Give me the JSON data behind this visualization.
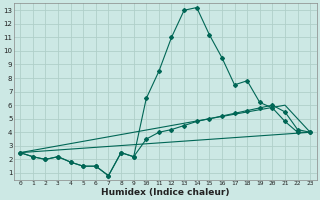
{
  "xlabel": "Humidex (Indice chaleur)",
  "xlim": [
    -0.5,
    23.5
  ],
  "ylim": [
    0.5,
    13.5
  ],
  "xtick_labels": [
    "0",
    "1",
    "2",
    "3",
    "4",
    "5",
    "6",
    "7",
    "8",
    "9",
    "10",
    "11",
    "12",
    "13",
    "14",
    "15",
    "16",
    "17",
    "18",
    "19",
    "20",
    "21",
    "22",
    "23"
  ],
  "ytick_labels": [
    "1",
    "2",
    "3",
    "4",
    "5",
    "6",
    "7",
    "8",
    "9",
    "10",
    "11",
    "12",
    "13"
  ],
  "bg_color": "#cce8e4",
  "grid_color": "#b0cfc9",
  "line_color": "#006655",
  "line1_x": [
    0,
    1,
    2,
    3,
    4,
    5,
    6,
    7,
    8,
    9,
    10,
    11,
    12,
    13,
    14,
    15,
    16,
    17,
    18,
    19,
    20,
    21,
    22,
    23
  ],
  "line1_y": [
    2.5,
    2.2,
    2.0,
    2.2,
    1.8,
    1.5,
    1.5,
    0.8,
    2.5,
    2.2,
    6.5,
    8.5,
    11.0,
    13.0,
    13.2,
    11.2,
    9.5,
    7.5,
    7.8,
    6.2,
    5.8,
    4.8,
    4.0,
    4.0
  ],
  "line2_x": [
    0,
    1,
    2,
    3,
    4,
    5,
    6,
    7,
    8,
    9,
    10,
    11,
    12,
    13,
    14,
    15,
    16,
    17,
    18,
    19,
    20,
    21,
    22,
    23
  ],
  "line2_y": [
    2.5,
    2.2,
    2.0,
    2.2,
    1.8,
    1.5,
    1.5,
    0.8,
    2.5,
    2.2,
    3.5,
    4.0,
    4.2,
    4.5,
    4.8,
    5.0,
    5.2,
    5.4,
    5.6,
    5.8,
    6.0,
    5.5,
    4.2,
    4.0
  ],
  "line3_x": [
    0,
    21,
    22,
    23
  ],
  "line3_y": [
    2.5,
    6.0,
    5.0,
    4.0
  ],
  "line4_x": [
    0,
    23
  ],
  "line4_y": [
    2.5,
    4.0
  ]
}
